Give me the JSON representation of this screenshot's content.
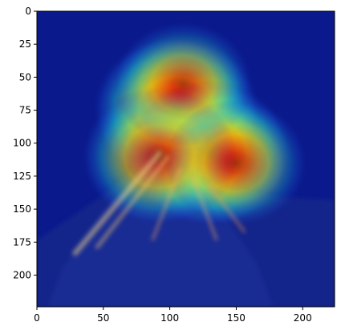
{
  "chart_data": {
    "type": "heatmap",
    "title": "",
    "xlabel": "",
    "ylabel": "",
    "xlim": [
      0,
      224
    ],
    "ylim": [
      224,
      0
    ],
    "x_ticks": [
      0,
      50,
      100,
      150,
      200
    ],
    "y_ticks": [
      0,
      25,
      50,
      75,
      100,
      125,
      150,
      175,
      200
    ],
    "x_tick_labels": [
      "0",
      "50",
      "100",
      "150",
      "200"
    ],
    "y_tick_labels": [
      "0",
      "25",
      "50",
      "75",
      "100",
      "125",
      "150",
      "175",
      "200"
    ],
    "colormap": "jet",
    "grid": false,
    "background_color": "#0a1a8c",
    "activation_peaks": [
      {
        "x": 105,
        "y": 75,
        "strength": 1.0
      },
      {
        "x": 130,
        "y": 108,
        "strength": 0.95
      },
      {
        "x": 92,
        "y": 110,
        "strength": 0.8
      },
      {
        "x": 110,
        "y": 55,
        "strength": 0.55
      },
      {
        "x": 150,
        "y": 115,
        "strength": 0.6
      }
    ]
  }
}
